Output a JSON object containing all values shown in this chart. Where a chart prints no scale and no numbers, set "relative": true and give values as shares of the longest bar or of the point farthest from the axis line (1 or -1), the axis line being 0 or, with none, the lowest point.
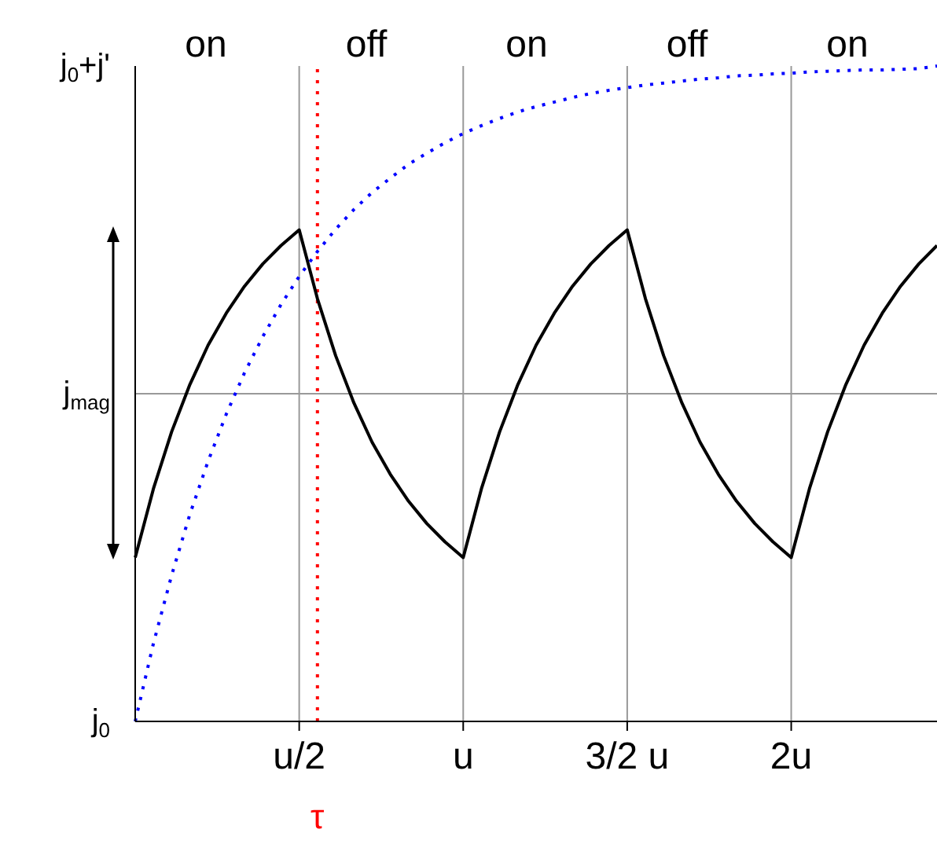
{
  "chart_data": {
    "type": "line",
    "relative": true,
    "grid": "x",
    "marker": "none",
    "categories": [
      null,
      null,
      null,
      null,
      null,
      null,
      null,
      null,
      null,
      "u/2",
      "τ",
      null,
      null,
      null,
      null,
      null,
      null,
      null,
      "u",
      null,
      null,
      null,
      null,
      null,
      null,
      null,
      null,
      "3/2 u",
      null,
      null,
      null,
      null,
      null,
      null,
      null,
      null,
      "2u",
      null,
      null,
      null,
      null,
      null,
      null,
      null,
      null
    ],
    "series": [
      {
        "color": "#000000",
        "line_style": "solid",
        "values": [
          0.25,
          0.355,
          0.442,
          0.514,
          0.574,
          0.623,
          0.664,
          0.698,
          0.726,
          0.75,
          0.645,
          0.558,
          0.486,
          0.426,
          0.377,
          0.336,
          0.302,
          0.274,
          0.25,
          0.355,
          0.442,
          0.514,
          0.574,
          0.623,
          0.664,
          0.698,
          0.726,
          0.75,
          0.645,
          0.558,
          0.486,
          0.426,
          0.377,
          0.336,
          0.302,
          0.274,
          0.25,
          0.355,
          0.442,
          0.514,
          0.574,
          0.623,
          0.664,
          0.698,
          0.726
        ]
      },
      {
        "color": "#0000ff",
        "line_style": "dotted",
        "values": [
          0,
          0.119,
          0.223,
          0.316,
          0.397,
          0.469,
          0.532,
          0.587,
          0.636,
          0.679,
          0.717,
          0.751,
          0.781,
          0.807,
          0.829,
          0.85,
          0.867,
          0.883,
          0.897,
          0.909,
          0.92,
          0.93,
          0.938,
          0.945,
          0.952,
          0.958,
          0.963,
          0.967,
          0.971,
          0.974,
          0.977,
          0.98,
          0.982,
          0.985,
          0.986,
          0.988,
          0.989,
          0.991,
          0.992,
          0.993,
          0.994,
          0.994,
          0.995,
          0.996,
          1
        ]
      }
    ],
    "ref_lines": [
      {
        "axis": "x",
        "value": "τ",
        "color": "#ff0000",
        "line_style": "dotted"
      },
      {
        "axis": "y",
        "value": 0.5,
        "label": "j$_{mag}$",
        "color": "#999999",
        "line_style": "solid"
      }
    ],
    "annotations": [
      "on",
      "off",
      "on",
      "off",
      "on",
      "j$_{0}$",
      "j$_{0}$+j'"
    ]
  }
}
